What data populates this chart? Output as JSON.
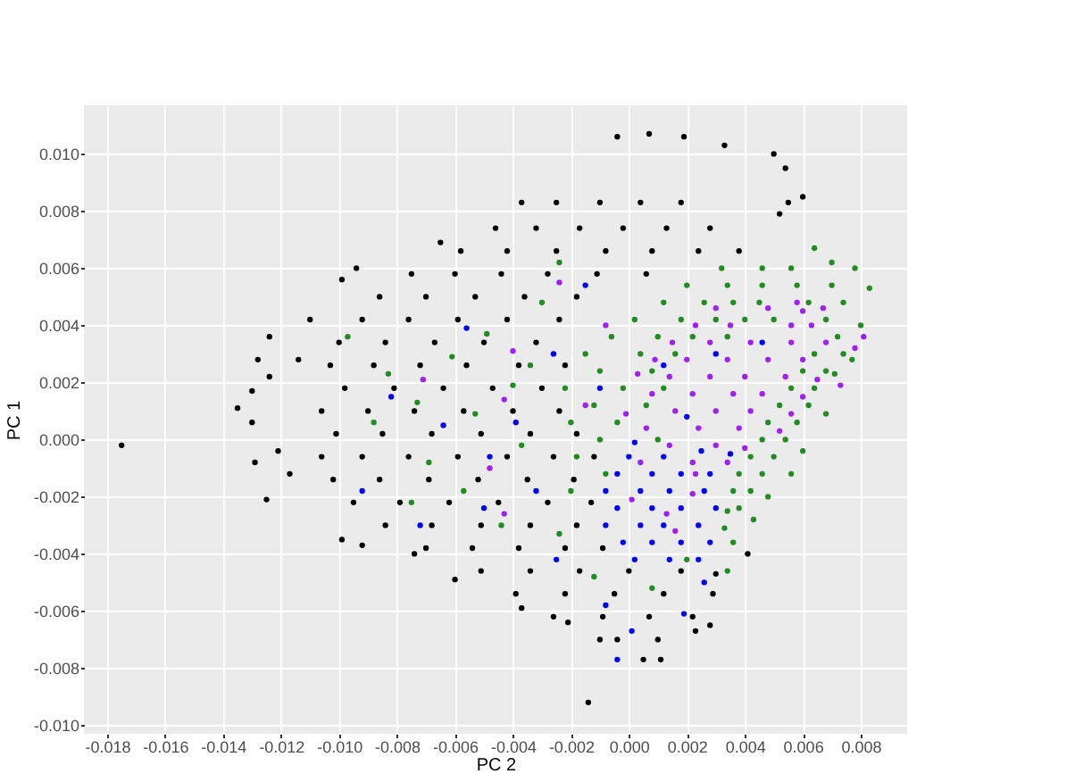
{
  "chart_data": {
    "type": "scatter",
    "xlabel": "PC 2",
    "ylabel": "PC 1",
    "xlim": [
      -0.0188,
      0.0096
    ],
    "ylim": [
      -0.0103,
      0.0117
    ],
    "xticks": [
      -0.018,
      -0.016,
      -0.014,
      -0.012,
      {
        "value": -0.01,
        "label": "-0.010"
      },
      -0.008,
      -0.006,
      -0.004,
      -0.002,
      {
        "value": 0,
        "label": "0.000"
      },
      0.002,
      0.004,
      0.006,
      0.008
    ],
    "yticks": [
      {
        "value": -0.01,
        "label": "-0.010"
      },
      -0.008,
      -0.006,
      -0.004,
      -0.002,
      {
        "value": 0,
        "label": "0.000"
      },
      0.002,
      0.004,
      0.006,
      0.008,
      {
        "value": 0.01,
        "label": "0.010"
      }
    ],
    "grid": true,
    "marker": "circle",
    "series": [
      {
        "color": "#000000",
        "x": [
          -0.0175,
          -0.0135,
          -0.0124,
          -0.0128,
          -0.013,
          -0.013,
          -0.0129,
          -0.0125,
          -0.0124,
          -0.011,
          -0.0114,
          -0.0099,
          -0.0094,
          -0.0117,
          -0.0121,
          -0.0099,
          -0.0092,
          -0.006,
          -0.0037,
          -0.0014,
          0.0007,
          -0.0004,
          0.0019,
          0.0033,
          0.005,
          0.0054,
          0.006,
          0.0055,
          0.0052,
          -0.0065,
          -0.0037,
          0.0041,
          0.003,
          0.0028,
          0.0023,
          0.0011,
          0.0005,
          -0.001,
          -0.0021,
          -0.0074,
          -0.0025,
          -0.001,
          0.0004,
          0.0018,
          -0.0046,
          -0.0032,
          -0.0017,
          -0.0002,
          0.0013,
          0.0028,
          -0.0058,
          -0.0042,
          -0.0025,
          -0.0008,
          0.0008,
          0.0024,
          0.0038,
          -0.0075,
          -0.006,
          -0.0044,
          -0.0028,
          -0.0011,
          0.0006,
          -0.0086,
          -0.007,
          -0.0053,
          -0.0036,
          -0.0018,
          -0.0092,
          -0.0076,
          -0.0059,
          -0.0042,
          -0.0024,
          -0.01,
          -0.0084,
          -0.0067,
          -0.005,
          -0.0032,
          -0.0103,
          -0.0088,
          -0.0072,
          -0.0056,
          -0.0038,
          -0.0022,
          -0.0098,
          -0.0081,
          -0.0064,
          -0.0047,
          -0.003,
          -0.0106,
          -0.009,
          -0.0074,
          -0.0057,
          -0.004,
          -0.0024,
          -0.0101,
          -0.0085,
          -0.0068,
          -0.0051,
          -0.0034,
          -0.0018,
          -0.0106,
          -0.0092,
          -0.0076,
          -0.0059,
          -0.0042,
          -0.0026,
          -0.0012,
          -0.0102,
          -0.0086,
          -0.0069,
          -0.0052,
          -0.0035,
          -0.0019,
          -0.0095,
          -0.0079,
          -0.0062,
          -0.0045,
          -0.0028,
          -0.0013,
          -0.0084,
          -0.0068,
          -0.0051,
          -0.0034,
          -0.0018,
          -0.007,
          -0.0054,
          -0.0038,
          -0.0022,
          -0.0009,
          -0.0051,
          -0.0034,
          -0.0017,
          0,
          0.0018,
          -0.0039,
          -0.0022,
          -0.0005,
          0.0012,
          0.0029,
          -0.0026,
          -0.0009,
          0.0007,
          0.0022,
          -0.0004,
          0.001
        ],
        "values": [
          -0.0002,
          0.0011,
          0.0036,
          0.0028,
          0.0017,
          0.0006,
          -0.0008,
          -0.0021,
          0.0022,
          0.0042,
          0.0028,
          0.0056,
          0.006,
          -0.0012,
          -0.0004,
          -0.0035,
          -0.0037,
          -0.0049,
          -0.0059,
          -0.0092,
          0.0107,
          0.0106,
          0.0106,
          0.0103,
          0.01,
          0.0095,
          0.0085,
          0.0083,
          0.0079,
          0.0069,
          0.0083,
          -0.004,
          -0.0047,
          -0.0065,
          -0.0067,
          -0.0077,
          -0.0077,
          -0.007,
          -0.0064,
          -0.004,
          0.0083,
          0.0083,
          0.0083,
          0.0083,
          0.0074,
          0.0074,
          0.0074,
          0.0074,
          0.0074,
          0.0074,
          0.0066,
          0.0066,
          0.0066,
          0.0066,
          0.0066,
          0.0066,
          0.0066,
          0.0058,
          0.0058,
          0.0058,
          0.0058,
          0.0058,
          0.0058,
          0.005,
          0.005,
          0.005,
          0.005,
          0.005,
          0.0042,
          0.0042,
          0.0042,
          0.0042,
          0.0042,
          0.0034,
          0.0034,
          0.0034,
          0.0034,
          0.0034,
          0.0026,
          0.0026,
          0.0026,
          0.0026,
          0.0026,
          0.0026,
          0.0018,
          0.0018,
          0.0018,
          0.0018,
          0.0018,
          0.001,
          0.001,
          0.001,
          0.001,
          0.001,
          0.001,
          0.0002,
          0.0002,
          0.0002,
          0.0002,
          0.0002,
          0.0002,
          -0.0006,
          -0.0006,
          -0.0006,
          -0.0006,
          -0.0006,
          -0.0006,
          -0.0006,
          -0.0014,
          -0.0014,
          -0.0014,
          -0.0014,
          -0.0014,
          -0.0014,
          -0.0022,
          -0.0022,
          -0.0022,
          -0.0022,
          -0.0022,
          -0.0022,
          -0.003,
          -0.003,
          -0.003,
          -0.003,
          -0.003,
          -0.0038,
          -0.0038,
          -0.0038,
          -0.0038,
          -0.0038,
          -0.0046,
          -0.0046,
          -0.0046,
          -0.0046,
          -0.0046,
          -0.0054,
          -0.0054,
          -0.0054,
          -0.0054,
          -0.0054,
          -0.0062,
          -0.0062,
          -0.0062,
          -0.0062,
          -0.007,
          -0.007
        ]
      },
      {
        "color": "#228b22",
        "x": [
          0.0083,
          0.0078,
          0.007,
          0.0064,
          0.008,
          0.0077,
          0.0071,
          0.0068,
          0.006,
          0.0056,
          0.0048,
          0.0043,
          0.0036,
          0.0034,
          0.0032,
          0.0046,
          0.0056,
          0.002,
          0.0034,
          0.0046,
          0.0058,
          0.007,
          0.0012,
          0.0026,
          0.0036,
          0.0045,
          0.0062,
          0.0074,
          0.0002,
          0.0018,
          0.003,
          0.004,
          0.005,
          0.0068,
          -0.0006,
          0.001,
          0.0022,
          0.0034,
          0.0072,
          -0.0015,
          0.0004,
          0.0016,
          0.0064,
          0.0074,
          -0.001,
          0.0008,
          0.006,
          0.0068,
          -0.0022,
          -0.0002,
          0.0012,
          0.0056,
          0.0064,
          -0.0012,
          0.0006,
          0.0052,
          0.0062,
          -0.002,
          -0.0004,
          0.0048,
          0.0058,
          -0.001,
          0.001,
          0.0046,
          0.0054,
          -0.0018,
          0.0042,
          0.005,
          -0.0008,
          0.0038,
          0.0046,
          -0.002,
          0.0036,
          0.0042,
          0.0034,
          0.0038,
          0.0033,
          -0.0097,
          -0.0083,
          -0.0073,
          -0.0061,
          -0.0049,
          -0.0053,
          -0.004,
          -0.0069,
          -0.0037,
          -0.0057,
          -0.0075,
          -0.003,
          -0.0024,
          -0.0044,
          -0.0012,
          0.0008,
          0.002,
          -0.0088,
          -0.0034,
          -0.0024
        ],
        "values": [
          0.0053,
          0.006,
          0.0062,
          0.0067,
          0.004,
          0.0028,
          0.0023,
          0.0009,
          -0.0004,
          -0.0012,
          -0.002,
          -0.0028,
          -0.0036,
          -0.0046,
          0.006,
          0.006,
          0.006,
          0.0054,
          0.0054,
          0.0054,
          0.0054,
          0.0054,
          0.0048,
          0.0048,
          0.0048,
          0.0048,
          0.0048,
          0.0048,
          0.0042,
          0.0042,
          0.0042,
          0.0042,
          0.0042,
          0.0042,
          0.0036,
          0.0036,
          0.0036,
          0.0036,
          0.0036,
          0.003,
          0.003,
          0.003,
          0.003,
          0.003,
          0.0024,
          0.0024,
          0.0024,
          0.0024,
          0.0018,
          0.0018,
          0.0018,
          0.0018,
          0.0018,
          0.0012,
          0.0012,
          0.0012,
          0.0012,
          0.0006,
          0.0006,
          0.0006,
          0.0006,
          0,
          0,
          0,
          0,
          -0.0006,
          -0.0006,
          -0.0006,
          -0.0012,
          -0.0012,
          -0.0012,
          -0.0018,
          -0.0018,
          -0.0018,
          -0.0025,
          -0.0024,
          -0.0031,
          0.0036,
          0.0023,
          0.0013,
          0.0029,
          0.0037,
          0.0009,
          0.0019,
          -0.0008,
          -0.0002,
          -0.0018,
          -0.0022,
          0.0048,
          -0.0033,
          -0.003,
          -0.0048,
          -0.0052,
          -0.0042,
          0.0006,
          0.0026,
          0.0062
        ]
      },
      {
        "color": "#a020f0",
        "x": [
          0.003,
          0.0048,
          0.006,
          0.0023,
          0.0035,
          0.0056,
          0.0063,
          0.0015,
          0.0028,
          0.0042,
          0.0056,
          0.0068,
          0.0009,
          0.002,
          0.0034,
          0.0048,
          0.006,
          0.0014,
          0.0028,
          0.004,
          0.0054,
          0.0065,
          0.0008,
          0.0022,
          0.0036,
          0.0046,
          0.006,
          0.0016,
          0.003,
          0.0042,
          0.0056,
          0.0006,
          0.0024,
          0.0038,
          0.0052,
          0.0014,
          0.003,
          0.004,
          0.0004,
          0.0022,
          0.0034,
          0.0081,
          0.0078,
          0.0073,
          0.0067,
          0.0058,
          0.0003,
          -0.0001,
          0.0023,
          -0.0024,
          -0.0043,
          -0.0048,
          -0.004,
          -0.0043,
          -0.0071,
          -0.0015,
          0.0001,
          0.0016,
          0.0013,
          0.0022,
          -0.0008
        ],
        "values": [
          0.0046,
          0.0046,
          0.0045,
          0.004,
          0.004,
          0.004,
          0.004,
          0.0034,
          0.0034,
          0.0034,
          0.0034,
          0.0034,
          0.0028,
          0.0028,
          0.0028,
          0.0028,
          0.0028,
          0.0022,
          0.0022,
          0.0022,
          0.0022,
          0.0021,
          0.0016,
          0.0016,
          0.0016,
          0.0016,
          0.0015,
          0.001,
          0.001,
          0.001,
          0.0009,
          0.0004,
          0.0004,
          0.0004,
          0.0003,
          -0.0002,
          -0.0002,
          -0.0003,
          -0.0008,
          -0.0008,
          -0.0008,
          0.0036,
          0.0032,
          0.0019,
          0.0046,
          0.0048,
          0.0023,
          0.0009,
          -0.0012,
          0.0055,
          0.0014,
          -0.001,
          0.0031,
          -0.0026,
          0.0021,
          0.0012,
          -0.0021,
          -0.0032,
          -0.0026,
          -0.0019,
          0.004
        ]
      },
      {
        "color": "#0000ff",
        "x": [
          0,
          0.0012,
          0.0025,
          -0.0004,
          0.0008,
          0.0018,
          0.0028,
          -0.0008,
          0.0004,
          0.0014,
          0.0026,
          -0.0004,
          0.0008,
          0.0018,
          0.003,
          -0.0008,
          0.0004,
          0.0012,
          0.0024,
          -0.0002,
          0.0008,
          0.0018,
          0.0028,
          0.0002,
          0.0014,
          0.0024,
          -0.0004,
          0.0001,
          -0.0008,
          0.0019,
          -0.0025,
          0.0035,
          0.002,
          -0.001,
          0.0012,
          0.003,
          -0.0026,
          -0.0048,
          -0.0064,
          -0.0082,
          -0.0056,
          -0.0032,
          -0.0072,
          -0.0015,
          0.0002,
          0.0046,
          -0.0039,
          0.0026,
          -0.005,
          -0.0092
        ],
        "values": [
          -0.0006,
          -0.0006,
          -0.0004,
          -0.0012,
          -0.0012,
          -0.0012,
          -0.0012,
          -0.0018,
          -0.0018,
          -0.0018,
          -0.0018,
          -0.0024,
          -0.0024,
          -0.0024,
          -0.0024,
          -0.003,
          -0.003,
          -0.003,
          -0.003,
          -0.0036,
          -0.0036,
          -0.0036,
          -0.0036,
          -0.0042,
          -0.0042,
          -0.0042,
          -0.0077,
          -0.0067,
          -0.0058,
          -0.0061,
          -0.0042,
          -0.0005,
          0.0008,
          0.0018,
          0.0026,
          0.003,
          0.003,
          -0.0006,
          0.0005,
          0.0015,
          0.0039,
          -0.0018,
          -0.003,
          0.0054,
          -0.0001,
          0.0034,
          0.0006,
          -0.005,
          -0.0024,
          -0.0018
        ]
      }
    ]
  }
}
